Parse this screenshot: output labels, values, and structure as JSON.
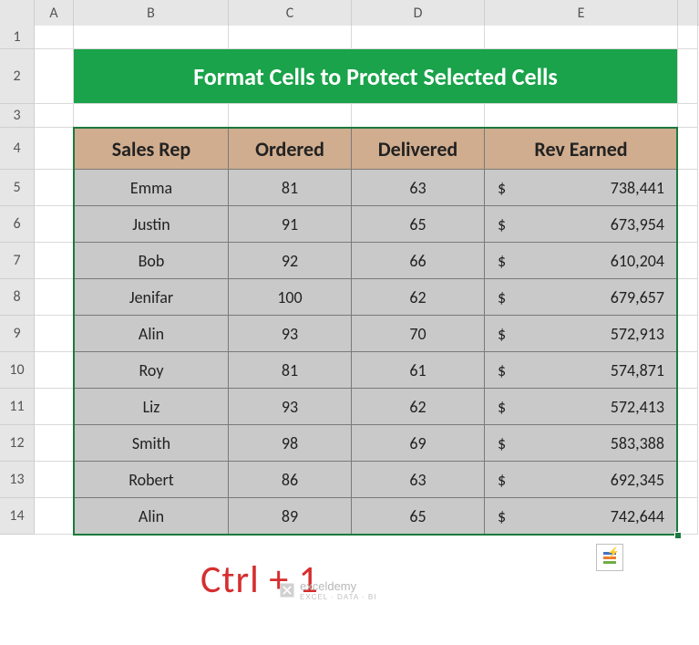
{
  "columns": {
    "A": "A",
    "B": "B",
    "C": "C",
    "D": "D",
    "E": "E"
  },
  "row_numbers": [
    "1",
    "2",
    "3",
    "4",
    "5",
    "6",
    "7",
    "8",
    "9",
    "10",
    "11",
    "12",
    "13",
    "14"
  ],
  "title": "Format Cells to Protect Selected Cells",
  "title_bg": "#1aa34a",
  "title_color": "#ffffff",
  "headers": {
    "B": "Sales Rep",
    "C": "Ordered",
    "D": "Delivered",
    "E": "Rev Earned"
  },
  "header_bg": "#d0ad8f",
  "data_bg": "#c9c9c9",
  "currency_symbol": "$",
  "rows": [
    {
      "rep": "Emma",
      "ordered": "81",
      "delivered": "63",
      "rev": "738,441"
    },
    {
      "rep": "Justin",
      "ordered": "91",
      "delivered": "65",
      "rev": "673,954"
    },
    {
      "rep": "Bob",
      "ordered": "92",
      "delivered": "66",
      "rev": "610,204"
    },
    {
      "rep": "Jenifar",
      "ordered": "100",
      "delivered": "62",
      "rev": "679,657"
    },
    {
      "rep": "Alin",
      "ordered": "93",
      "delivered": "70",
      "rev": "572,913"
    },
    {
      "rep": "Roy",
      "ordered": "81",
      "delivered": "61",
      "rev": "574,871"
    },
    {
      "rep": "Liz",
      "ordered": "93",
      "delivered": "62",
      "rev": "572,413"
    },
    {
      "rep": "Smith",
      "ordered": "98",
      "delivered": "69",
      "rev": "583,388"
    },
    {
      "rep": "Robert",
      "ordered": "86",
      "delivered": "63",
      "rev": "692,345"
    },
    {
      "rep": "Alin",
      "ordered": "89",
      "delivered": "65",
      "rev": "742,644"
    }
  ],
  "shortcut_label": "Ctrl + 1",
  "shortcut_color": "#d62e2e",
  "selection_color": "#1b7a3e",
  "watermark_text": "exceldemy",
  "watermark_sub": "EXCEL · DATA · BI"
}
